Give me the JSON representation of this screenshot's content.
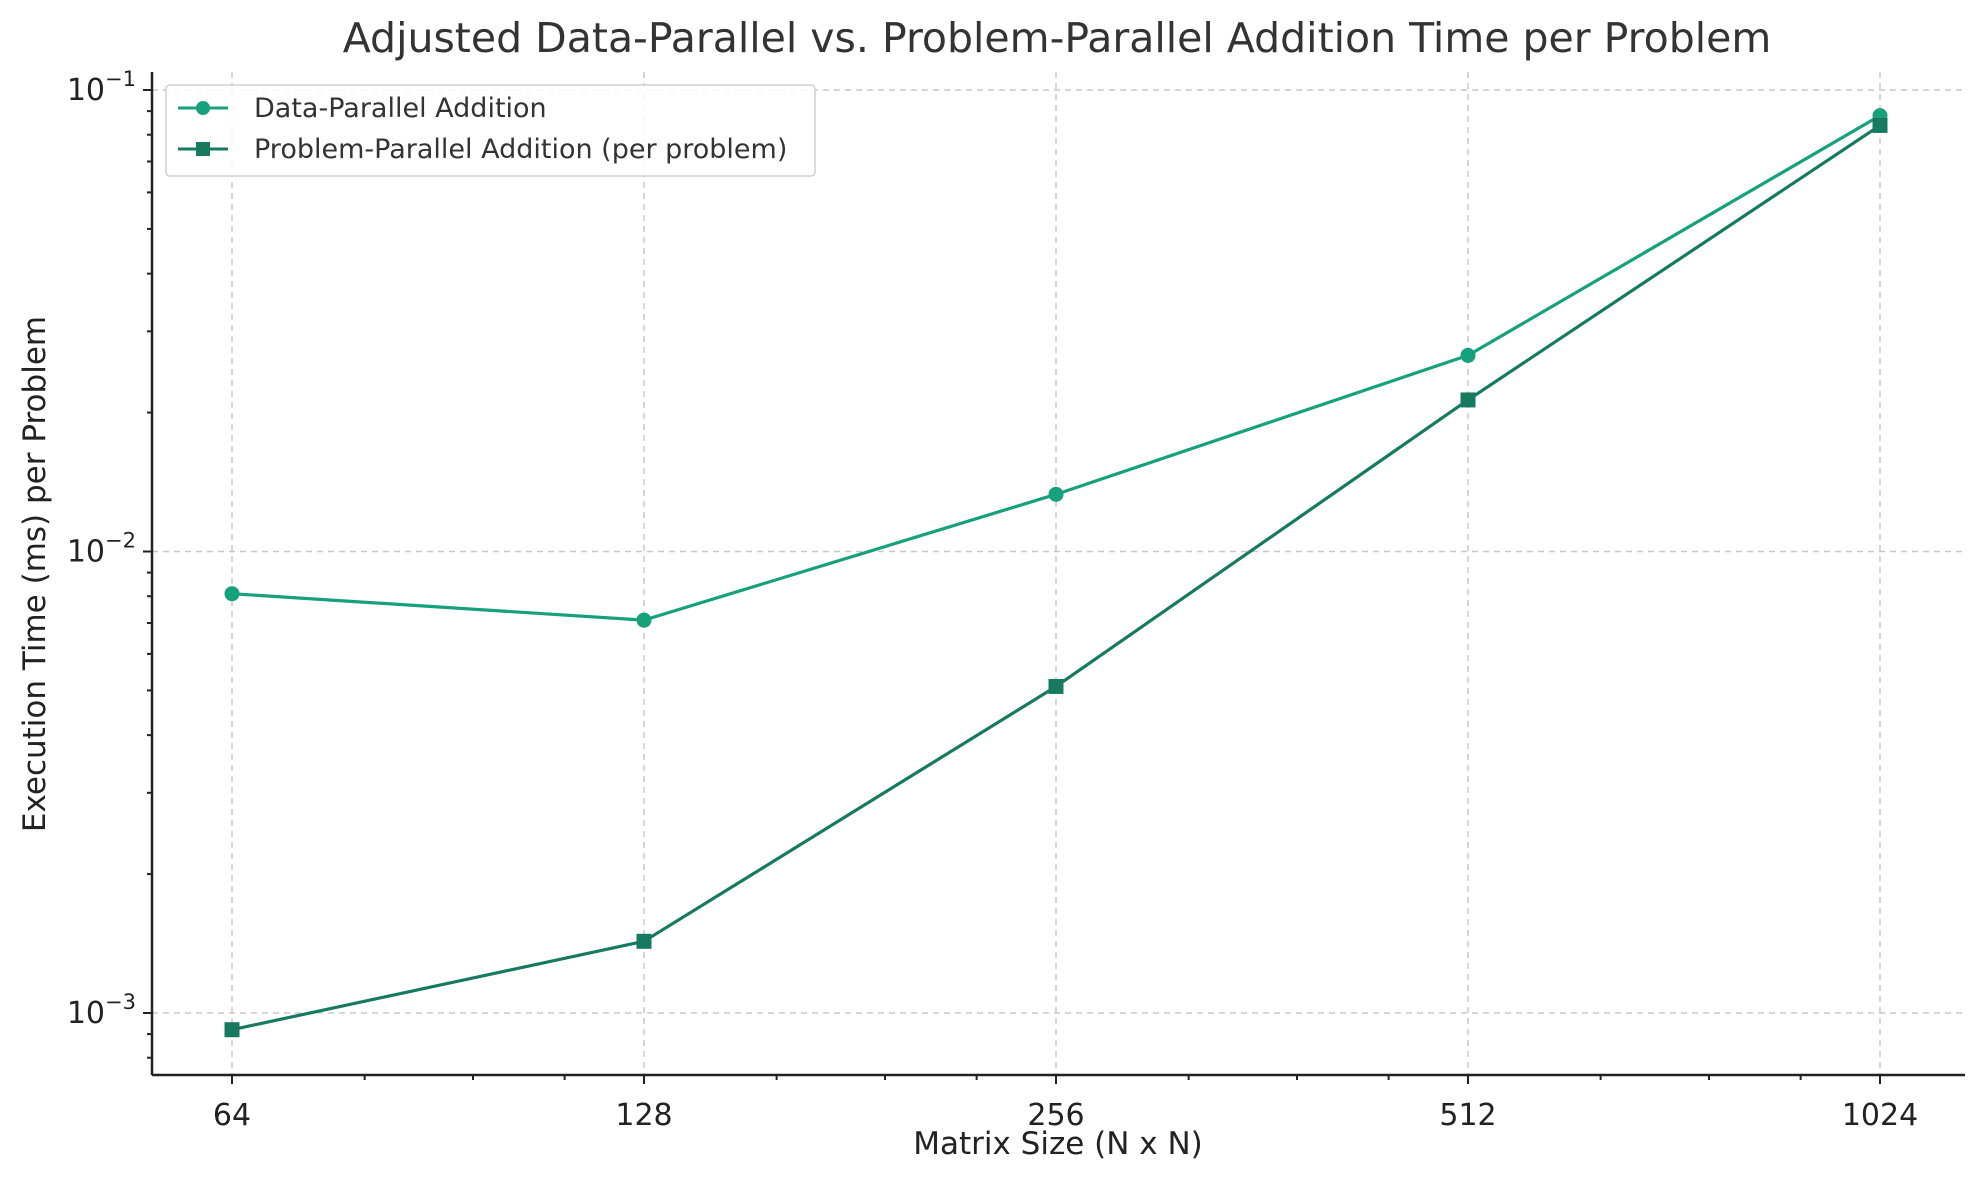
{
  "chart_data": {
    "type": "line",
    "title": "Adjusted Data-Parallel vs. Problem-Parallel Addition Time per Problem",
    "xlabel": "Matrix Size (N x N)",
    "ylabel": "Execution Time (ms) per Problem",
    "x_scale": "log2",
    "y_scale": "log",
    "x": [
      64,
      128,
      256,
      512,
      1024
    ],
    "x_tick_labels": [
      "64",
      "128",
      "256",
      "512",
      "1024"
    ],
    "y_ticks": [
      {
        "value": 0.001,
        "base": "10",
        "exponent": "−3"
      },
      {
        "value": 0.01,
        "base": "10",
        "exponent": "−2"
      },
      {
        "value": 0.1,
        "base": "10",
        "exponent": "−1"
      }
    ],
    "ylim": [
      0.00074,
      0.112
    ],
    "grid": true,
    "legend_position": "top-left",
    "series": [
      {
        "name": "Data-Parallel Addition",
        "marker": "circle",
        "color": "#16a07c",
        "values": [
          0.0081,
          0.0071,
          0.0133,
          0.0266,
          0.088
        ]
      },
      {
        "name": "Problem-Parallel Addition (per problem)",
        "marker": "square",
        "color": "#177a60",
        "values": [
          0.00092,
          0.00143,
          0.0051,
          0.0213,
          0.0838
        ]
      }
    ]
  }
}
